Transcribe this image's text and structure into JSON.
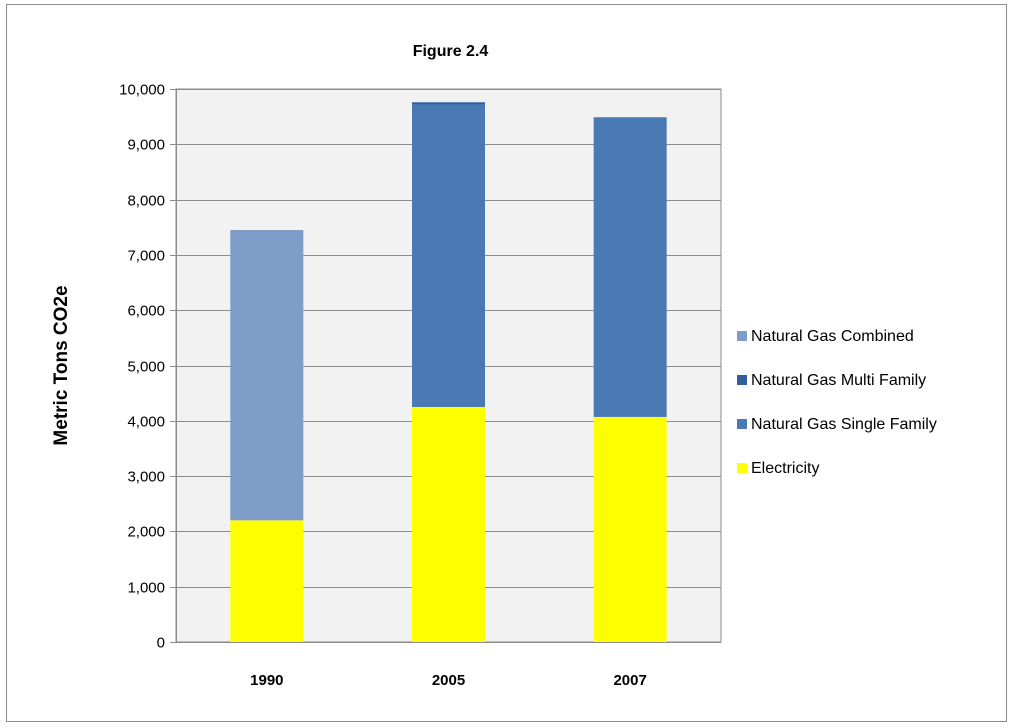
{
  "chart_data": {
    "type": "bar",
    "stacked": true,
    "title": "Figure 2.4",
    "xlabel": "",
    "ylabel": "Metric  Tons CO2e",
    "ylim": [
      0,
      10000
    ],
    "yticks": [
      0,
      1000,
      2000,
      3000,
      4000,
      5000,
      6000,
      7000,
      8000,
      9000,
      10000
    ],
    "ytick_labels": [
      "0",
      "1,000",
      "2,000",
      "3,000",
      "4,000",
      "5,000",
      "6,000",
      "7,000",
      "8,000",
      "9,000",
      "10,000"
    ],
    "categories": [
      "1990",
      "2005",
      "2007"
    ],
    "grid": true,
    "legend_position": "right",
    "plot_background": "#f2f2f2",
    "series": [
      {
        "name": "Electricity",
        "color": "#ffff00",
        "values": [
          2200,
          4250,
          4070
        ]
      },
      {
        "name": "Natural Gas Single Family",
        "color": "#4a7ab4",
        "values": [
          0,
          5470,
          5410
        ]
      },
      {
        "name": "Natural Gas Multi Family",
        "color": "#30609c",
        "values": [
          0,
          40,
          10
        ]
      },
      {
        "name": "Natural Gas Combined",
        "color": "#7e9cc8",
        "values": [
          5250,
          0,
          0
        ]
      }
    ],
    "legend_order": [
      "Natural Gas Combined",
      "Natural Gas Multi Family",
      "Natural Gas Single Family",
      "Electricity"
    ]
  }
}
